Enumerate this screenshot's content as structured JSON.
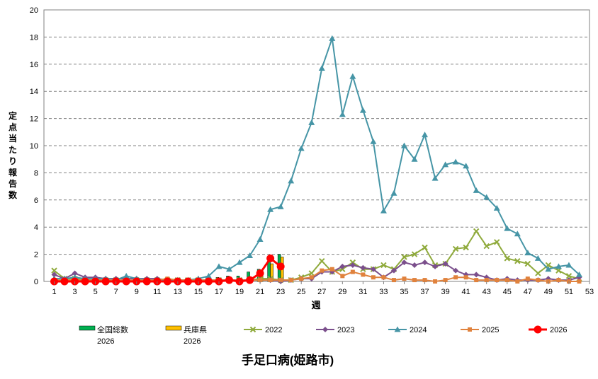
{
  "chart_data": {
    "type": "line",
    "title": "手足口病(姫路市)",
    "xlabel": "週",
    "ylabel": "定点当たり報告数",
    "xlim": [
      0,
      53
    ],
    "ylim": [
      0,
      20
    ],
    "y_ticks": [
      "0",
      "2",
      "4",
      "6",
      "8",
      "10",
      "12",
      "14",
      "16",
      "18",
      "20"
    ],
    "x_ticks": [
      "1",
      "3",
      "5",
      "7",
      "9",
      "11",
      "13",
      "15",
      "17",
      "19",
      "21",
      "23",
      "25",
      "27",
      "29",
      "31",
      "33",
      "35",
      "37",
      "39",
      "41",
      "43",
      "45",
      "47",
      "49",
      "51",
      "53"
    ],
    "grid": "horizontal dashed",
    "bar_series": [
      {
        "name": "全国総数",
        "name2": "2026",
        "color": "#00b050",
        "x": [
          1,
          2,
          3,
          4,
          5,
          6,
          7,
          8,
          9,
          10,
          11,
          12,
          13,
          14,
          15,
          16,
          17,
          18,
          19,
          20,
          21,
          22,
          23
        ],
        "values": [
          0.0,
          0.02,
          0.05,
          0.08,
          0.1,
          0.1,
          0.1,
          0.12,
          0.12,
          0.15,
          0.15,
          0.15,
          0.2,
          0.2,
          0.25,
          0.3,
          0.3,
          0.4,
          0.4,
          0.7,
          0.9,
          1.5,
          2.0
        ]
      },
      {
        "name": "兵庫県",
        "name2": "2026",
        "color": "#ffc000",
        "x": [
          1,
          2,
          3,
          4,
          5,
          6,
          7,
          8,
          9,
          10,
          11,
          12,
          13,
          14,
          15,
          16,
          17,
          18,
          19,
          20,
          21,
          22,
          23
        ],
        "values": [
          0.0,
          0.0,
          0.02,
          0.03,
          0.05,
          0.05,
          0.05,
          0.06,
          0.06,
          0.08,
          0.08,
          0.08,
          0.1,
          0.1,
          0.12,
          0.15,
          0.15,
          0.2,
          0.2,
          0.3,
          0.5,
          1.3,
          1.8
        ]
      }
    ],
    "series": [
      {
        "name": "2022",
        "color": "#8faa3c",
        "marker": "x",
        "x": [
          1,
          2,
          3,
          4,
          5,
          6,
          7,
          8,
          9,
          10,
          11,
          12,
          13,
          14,
          15,
          16,
          17,
          18,
          19,
          20,
          21,
          22,
          23,
          24,
          25,
          26,
          27,
          28,
          29,
          30,
          31,
          32,
          33,
          34,
          35,
          36,
          37,
          38,
          39,
          40,
          41,
          42,
          43,
          44,
          45,
          46,
          47,
          48,
          49,
          50,
          51,
          52
        ],
        "values": [
          0.8,
          0.2,
          0.2,
          0.1,
          0.1,
          0.1,
          0.1,
          0.0,
          0.1,
          0.1,
          0.1,
          0.1,
          0.1,
          0.1,
          0.1,
          0.1,
          0.1,
          0.1,
          0.1,
          0.1,
          0.2,
          0.2,
          0.1,
          0.1,
          0.3,
          0.6,
          1.5,
          0.7,
          0.9,
          1.4,
          0.9,
          0.9,
          1.2,
          0.9,
          1.8,
          2.0,
          2.5,
          1.2,
          1.3,
          2.4,
          2.5,
          3.7,
          2.6,
          2.9,
          1.7,
          1.5,
          1.3,
          0.6,
          1.2,
          0.8,
          0.4,
          0.2
        ]
      },
      {
        "name": "2023",
        "color": "#7b4f8c",
        "marker": "diamond",
        "x": [
          1,
          2,
          3,
          4,
          5,
          6,
          7,
          8,
          9,
          10,
          11,
          12,
          13,
          14,
          15,
          16,
          17,
          18,
          19,
          20,
          21,
          22,
          23,
          24,
          25,
          26,
          27,
          28,
          29,
          30,
          31,
          32,
          33,
          34,
          35,
          36,
          37,
          38,
          39,
          40,
          41,
          42,
          43,
          44,
          45,
          46,
          47,
          48,
          49,
          50,
          51,
          52
        ],
        "values": [
          0.5,
          0.2,
          0.6,
          0.3,
          0.3,
          0.2,
          0.2,
          0.2,
          0.2,
          0.2,
          0.2,
          0.1,
          0.1,
          0.1,
          0.1,
          0.1,
          0.0,
          0.1,
          0.1,
          0.1,
          0.1,
          0.1,
          0.0,
          0.1,
          0.2,
          0.2,
          0.7,
          0.7,
          1.1,
          1.2,
          1.0,
          0.9,
          0.3,
          0.8,
          1.4,
          1.2,
          1.4,
          1.1,
          1.3,
          0.8,
          0.5,
          0.5,
          0.3,
          0.1,
          0.2,
          0.1,
          0.1,
          0.1,
          0.2,
          0.1,
          0.1,
          0.3
        ]
      },
      {
        "name": "2024",
        "color": "#4695a6",
        "marker": "triangle",
        "x": [
          1,
          2,
          3,
          4,
          5,
          6,
          7,
          8,
          9,
          10,
          11,
          12,
          13,
          14,
          15,
          16,
          17,
          18,
          19,
          20,
          21,
          22,
          23,
          24,
          25,
          26,
          27,
          28,
          29,
          30,
          31,
          32,
          33,
          34,
          35,
          36,
          37,
          38,
          39,
          40,
          41,
          42,
          43,
          44,
          45,
          46,
          47,
          48,
          49,
          50,
          51,
          52
        ],
        "values": [
          0.2,
          0.2,
          0.3,
          0.2,
          0.2,
          0.2,
          0.1,
          0.4,
          0.2,
          0.1,
          0.1,
          0.1,
          0.1,
          0.1,
          0.2,
          0.4,
          1.1,
          0.9,
          1.4,
          1.9,
          3.1,
          5.3,
          5.5,
          7.4,
          9.8,
          11.7,
          15.7,
          17.9,
          12.3,
          15.1,
          12.6,
          10.3,
          5.2,
          6.5,
          10.0,
          9.0,
          10.8,
          7.6,
          8.6,
          8.8,
          8.5,
          6.7,
          6.2,
          5.4,
          3.9,
          3.5,
          2.1,
          1.7,
          0.9,
          1.1,
          1.2,
          0.5
        ]
      },
      {
        "name": "2025",
        "color": "#e0823d",
        "marker": "square",
        "x": [
          1,
          2,
          3,
          4,
          5,
          6,
          7,
          8,
          9,
          10,
          11,
          12,
          13,
          14,
          15,
          16,
          17,
          18,
          19,
          20,
          21,
          22,
          23,
          24,
          25,
          26,
          27,
          28,
          29,
          30,
          31,
          32,
          33,
          34,
          35,
          36,
          37,
          38,
          39,
          40,
          41,
          42,
          43,
          44,
          45,
          46,
          47,
          48,
          49,
          50,
          51,
          52
        ],
        "values": [
          0.1,
          0.1,
          0.1,
          0.1,
          0.1,
          0.1,
          0.1,
          0.1,
          0.1,
          0.1,
          0.1,
          0.2,
          0.1,
          0.1,
          0.1,
          0.1,
          0.1,
          0.1,
          0.1,
          0.1,
          0.1,
          0.1,
          0.1,
          0.1,
          0.2,
          0.3,
          0.8,
          0.9,
          0.4,
          0.7,
          0.5,
          0.3,
          0.3,
          0.1,
          0.2,
          0.1,
          0.1,
          0.0,
          0.1,
          0.3,
          0.3,
          0.1,
          0.1,
          0.1,
          0.1,
          0.0,
          0.2,
          0.1,
          0.0,
          0.1,
          0.0,
          0.0
        ]
      },
      {
        "name": "2026",
        "color": "#ff0000",
        "marker": "circle",
        "x": [
          1,
          2,
          3,
          4,
          5,
          6,
          7,
          8,
          9,
          10,
          11,
          12,
          13,
          14,
          15,
          16,
          17,
          18,
          19,
          20,
          21,
          22,
          23
        ],
        "values": [
          0.0,
          0.0,
          0.0,
          0.0,
          0.0,
          0.0,
          0.0,
          0.0,
          0.0,
          0.0,
          0.0,
          0.0,
          0.0,
          0.0,
          0.0,
          0.0,
          0.0,
          0.1,
          0.0,
          0.1,
          0.6,
          1.7,
          1.1
        ]
      }
    ]
  }
}
